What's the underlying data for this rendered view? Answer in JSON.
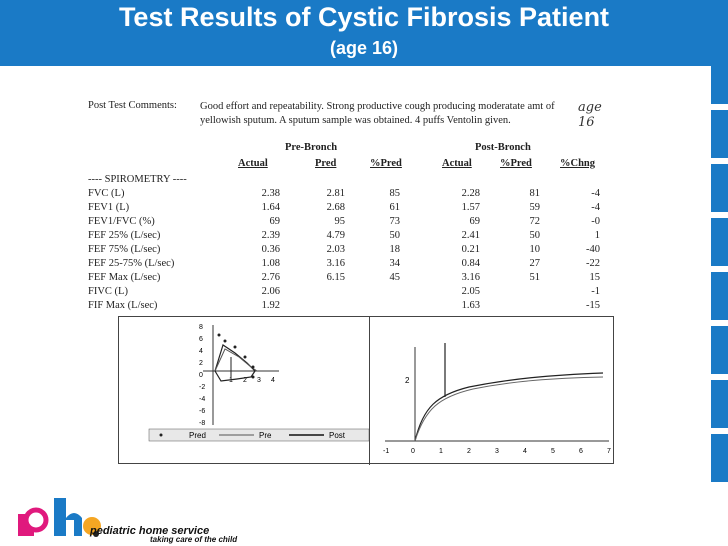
{
  "slide": {
    "title": "Test Results of Cystic Fibrosis Patient",
    "subtitle": "(age 16)",
    "accent_color": "#1a7ac6"
  },
  "report": {
    "comments_label": "Post Test Comments:",
    "comments_text": "Good effort and repeatability. Strong productive cough producing moderatate amt of yellowish sputum. A sputum sample was obtained. 4 puffs Ventolin given.",
    "handwritten_note": "age 16",
    "pre_group": "Pre-Bronch",
    "post_group": "Post-Bronch",
    "columns": [
      "Actual",
      "Pred",
      "%Pred",
      "Actual",
      "%Pred",
      "%Chng"
    ],
    "section_label": "---- SPIROMETRY ----",
    "rows": [
      {
        "label": "FVC (L)",
        "pre_actual": "2.38",
        "pred": "2.81",
        "pre_pct": "85",
        "post_actual": "2.28",
        "post_pct": "81",
        "chng": "-4"
      },
      {
        "label": "FEV1 (L)",
        "pre_actual": "1.64",
        "pred": "2.68",
        "pre_pct": "61",
        "post_actual": "1.57",
        "post_pct": "59",
        "chng": "-4"
      },
      {
        "label": "FEV1/FVC (%)",
        "pre_actual": "69",
        "pred": "95",
        "pre_pct": "73",
        "post_actual": "69",
        "post_pct": "72",
        "chng": "-0"
      },
      {
        "label": "FEF 25% (L/sec)",
        "pre_actual": "2.39",
        "pred": "4.79",
        "pre_pct": "50",
        "post_actual": "2.41",
        "post_pct": "50",
        "chng": "1"
      },
      {
        "label": "FEF 75% (L/sec)",
        "pre_actual": "0.36",
        "pred": "2.03",
        "pre_pct": "18",
        "post_actual": "0.21",
        "post_pct": "10",
        "chng": "-40"
      },
      {
        "label": "FEF 25-75% (L/sec)",
        "pre_actual": "1.08",
        "pred": "3.16",
        "pre_pct": "34",
        "post_actual": "0.84",
        "post_pct": "27",
        "chng": "-22"
      },
      {
        "label": "FEF Max (L/sec)",
        "pre_actual": "2.76",
        "pred": "6.15",
        "pre_pct": "45",
        "post_actual": "3.16",
        "post_pct": "51",
        "chng": "15"
      },
      {
        "label": "FIVC (L)",
        "pre_actual": "2.06",
        "pred": "",
        "pre_pct": "",
        "post_actual": "2.05",
        "post_pct": "",
        "chng": "-1"
      },
      {
        "label": "FIF Max (L/sec)",
        "pre_actual": "1.92",
        "pred": "",
        "pre_pct": "",
        "post_actual": "1.63",
        "post_pct": "",
        "chng": "-15"
      }
    ]
  },
  "flow_volume_plot": {
    "y_ticks": [
      "8",
      "6",
      "4",
      "2",
      "0",
      "-2",
      "-4",
      "-6",
      "-8"
    ],
    "x_ticks": [
      "1",
      "2",
      "3",
      "4"
    ],
    "legend": [
      "Pred",
      "Pre",
      "Post"
    ]
  },
  "volume_time_plot": {
    "y_ticks": [
      "2"
    ],
    "x_ticks": [
      "-1",
      "0",
      "1",
      "2",
      "3",
      "4",
      "5",
      "6",
      "7"
    ]
  },
  "footer": {
    "logo_text": "pediatric home service",
    "tagline": "taking care of the child",
    "logo_letters": "phs"
  }
}
